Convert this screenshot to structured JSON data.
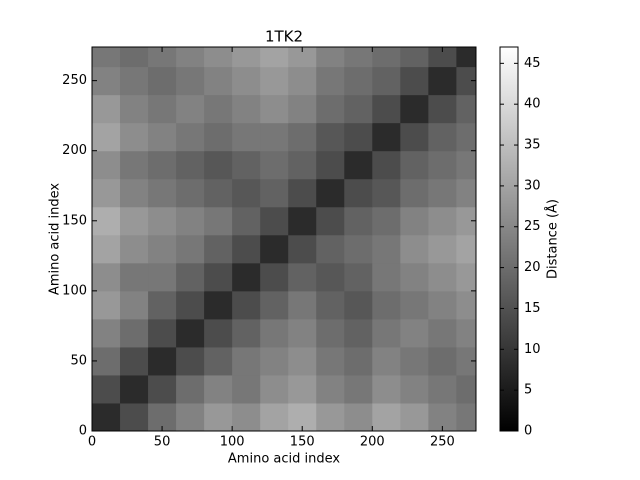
{
  "chart_data": {
    "type": "heatmap",
    "title": "1TK2",
    "xlabel": "Amino acid index",
    "ylabel": "Amino acid index",
    "colorbar_label": "Distance (Å)",
    "colormap": "gray",
    "xlim": [
      0,
      274
    ],
    "ylim": [
      0,
      274
    ],
    "xticks": [
      0,
      50,
      100,
      150,
      200,
      250
    ],
    "yticks": [
      0,
      50,
      100,
      150,
      200,
      250
    ],
    "clim": [
      0,
      47
    ],
    "cticks": [
      0,
      5,
      10,
      15,
      20,
      25,
      30,
      35,
      40,
      45
    ],
    "xbins": [
      0,
      20,
      40,
      60,
      80,
      100,
      120,
      140,
      160,
      180,
      200,
      220,
      240,
      260,
      274
    ],
    "ybins": [
      0,
      20,
      40,
      60,
      80,
      100,
      120,
      140,
      160,
      180,
      200,
      220,
      240,
      260,
      274
    ],
    "z": [
      [
        8,
        14,
        20,
        24,
        28,
        26,
        30,
        32,
        28,
        26,
        30,
        28,
        24,
        22
      ],
      [
        14,
        8,
        14,
        20,
        24,
        22,
        26,
        28,
        24,
        22,
        26,
        24,
        22,
        20
      ],
      [
        20,
        14,
        8,
        14,
        18,
        22,
        24,
        26,
        22,
        20,
        24,
        22,
        20,
        22
      ],
      [
        24,
        20,
        14,
        8,
        14,
        18,
        22,
        24,
        20,
        18,
        22,
        24,
        22,
        24
      ],
      [
        28,
        24,
        18,
        14,
        8,
        14,
        18,
        22,
        18,
        16,
        20,
        22,
        24,
        26
      ],
      [
        26,
        22,
        22,
        18,
        14,
        8,
        14,
        18,
        16,
        18,
        22,
        24,
        26,
        28
      ],
      [
        30,
        26,
        24,
        22,
        18,
        14,
        8,
        14,
        18,
        20,
        22,
        26,
        28,
        30
      ],
      [
        32,
        28,
        26,
        24,
        22,
        18,
        14,
        8,
        14,
        18,
        20,
        24,
        26,
        28
      ],
      [
        28,
        24,
        22,
        20,
        18,
        16,
        18,
        14,
        8,
        14,
        16,
        20,
        22,
        24
      ],
      [
        26,
        22,
        20,
        18,
        16,
        18,
        20,
        18,
        14,
        8,
        14,
        18,
        20,
        22
      ],
      [
        30,
        26,
        24,
        22,
        20,
        22,
        22,
        20,
        16,
        14,
        8,
        14,
        18,
        20
      ],
      [
        28,
        24,
        22,
        24,
        22,
        24,
        26,
        24,
        20,
        18,
        14,
        8,
        14,
        18
      ],
      [
        24,
        22,
        20,
        22,
        24,
        26,
        28,
        26,
        22,
        20,
        18,
        14,
        8,
        14
      ],
      [
        22,
        20,
        22,
        24,
        26,
        28,
        30,
        28,
        24,
        22,
        20,
        18,
        14,
        8
      ]
    ]
  }
}
